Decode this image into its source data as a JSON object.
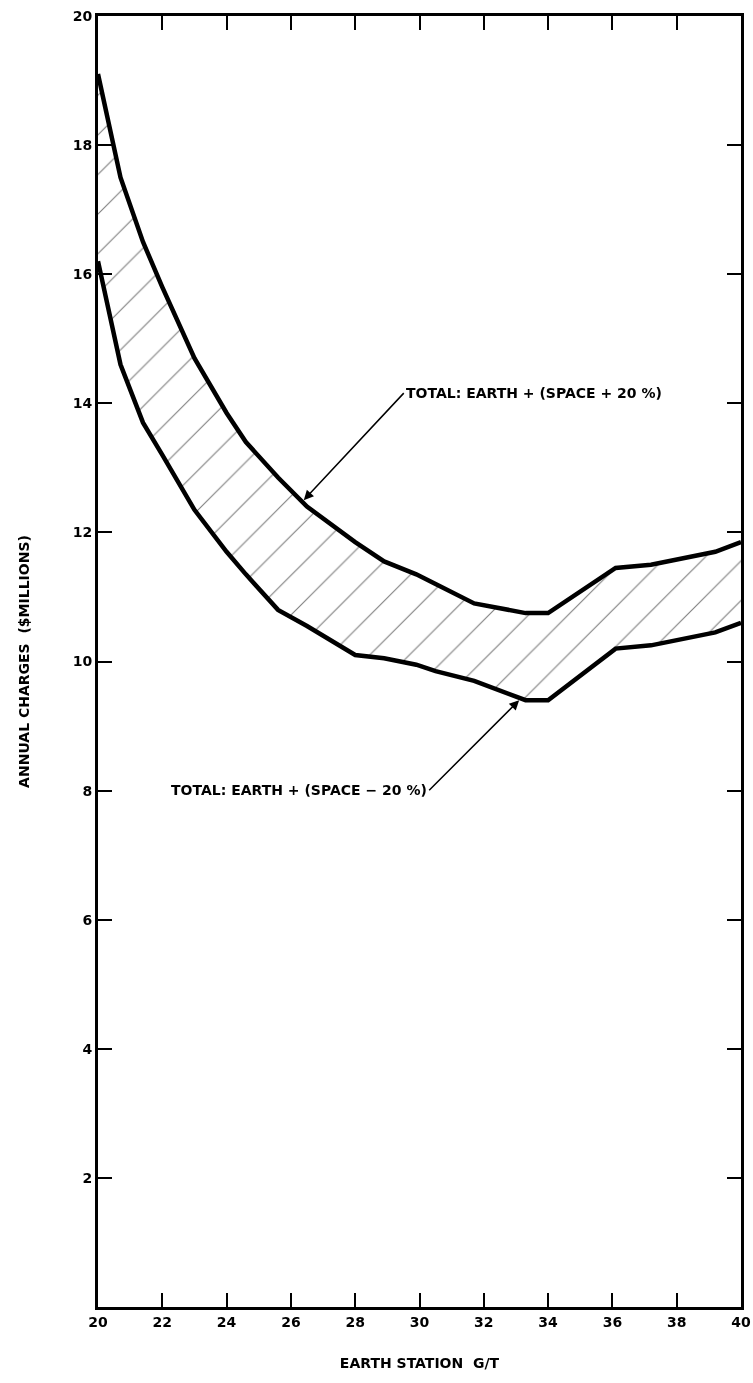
{
  "chart_data": {
    "type": "line",
    "xlabel": "EARTH STATION  G/T",
    "ylabel": "ANNUAL CHARGES  ($MILLIONS)",
    "x": [
      20,
      20.7,
      21.4,
      22,
      23,
      24,
      24.6,
      25.6,
      26.5,
      28,
      28.9,
      29.9,
      30.5,
      31.7,
      33.3,
      34,
      36.1,
      37.2,
      39.2,
      40
    ],
    "series": [
      {
        "color": "#000000",
        "values": [
          19.1,
          17.5,
          16.5,
          15.8,
          14.7,
          13.85,
          13.4,
          12.85,
          12.4,
          11.85,
          11.55,
          11.35,
          11.2,
          10.9,
          10.75,
          10.75,
          11.45,
          11.5,
          11.7,
          11.85
        ]
      },
      {
        "color": "#000000",
        "values": [
          16.2,
          14.6,
          13.7,
          13.2,
          12.35,
          11.7,
          11.35,
          10.8,
          10.55,
          10.1,
          10.05,
          9.95,
          9.85,
          9.7,
          9.4,
          9.4,
          10.2,
          10.25,
          10.45,
          10.6
        ],
        "upper": [
          19.1,
          17.5,
          16.5,
          15.8,
          14.7,
          13.85,
          13.4,
          12.85,
          12.4,
          11.85,
          11.55,
          11.35,
          11.2,
          10.9,
          10.75,
          10.75,
          11.45,
          11.5,
          11.7,
          11.85
        ],
        "lower": [
          16.2,
          14.6,
          13.7,
          13.2,
          12.35,
          11.7,
          11.35,
          10.8,
          10.55,
          10.1,
          10.05,
          9.95,
          9.85,
          9.7,
          9.4,
          9.4,
          10.2,
          10.25,
          10.45,
          10.6
        ]
      }
    ],
    "annotations": [
      {
        "text": "TOTAL: EARTH + (SPACE + 20 %)",
        "x": 26.4,
        "y": 12.5
      },
      {
        "text": "TOTAL: EARTH + (SPACE − 20 %)",
        "x": 33.1,
        "y": 9.4
      }
    ],
    "xlim": [
      20,
      40
    ],
    "xticks": [
      20,
      22,
      24,
      26,
      28,
      30,
      32,
      34,
      36,
      38,
      40
    ],
    "ylim": [
      0,
      20
    ],
    "yticks": [
      2,
      4,
      6,
      8,
      10,
      12,
      14,
      16,
      18,
      20
    ],
    "marker": "none",
    "line_style": "solid"
  }
}
